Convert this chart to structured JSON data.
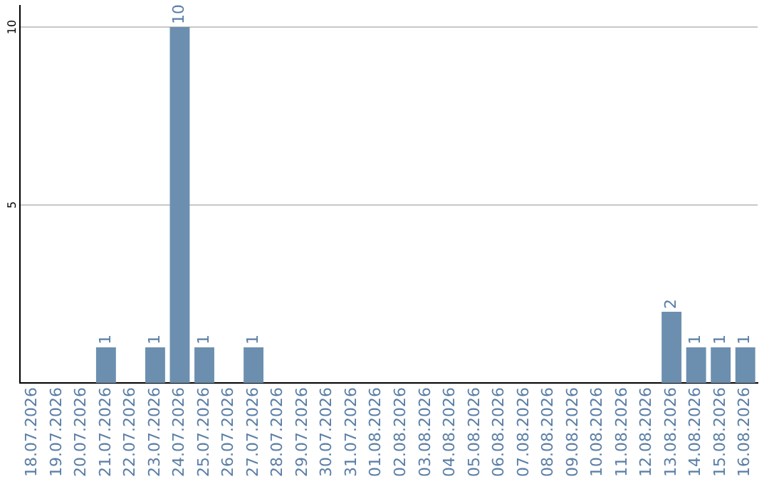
{
  "chart_data": {
    "type": "bar",
    "categories": [
      "18.07.2026",
      "19.07.2026",
      "20.07.2026",
      "21.07.2026",
      "22.07.2026",
      "23.07.2026",
      "24.07.2026",
      "25.07.2026",
      "26.07.2026",
      "27.07.2026",
      "28.07.2026",
      "29.07.2026",
      "30.07.2026",
      "31.07.2026",
      "01.08.2026",
      "02.08.2026",
      "03.08.2026",
      "04.08.2026",
      "05.08.2026",
      "06.08.2026",
      "07.08.2026",
      "08.08.2026",
      "09.08.2026",
      "10.08.2026",
      "11.08.2026",
      "12.08.2026",
      "13.08.2026",
      "14.08.2026",
      "15.08.2026",
      "16.08.2026"
    ],
    "values": [
      0,
      0,
      0,
      1,
      0,
      1,
      10,
      1,
      0,
      1,
      0,
      0,
      0,
      0,
      0,
      0,
      0,
      0,
      0,
      0,
      0,
      0,
      0,
      0,
      0,
      0,
      2,
      1,
      1,
      1
    ],
    "value_labels": [
      null,
      null,
      null,
      "1",
      null,
      "1",
      "10",
      "1",
      null,
      "1",
      null,
      null,
      null,
      null,
      null,
      null,
      null,
      null,
      null,
      null,
      null,
      null,
      null,
      null,
      null,
      null,
      "2",
      "1",
      "1",
      "1"
    ],
    "color": "#6c8fb0",
    "ylim": [
      0,
      10.6
    ],
    "yticks": [
      5,
      10
    ],
    "grid": "y",
    "legend": false
  }
}
